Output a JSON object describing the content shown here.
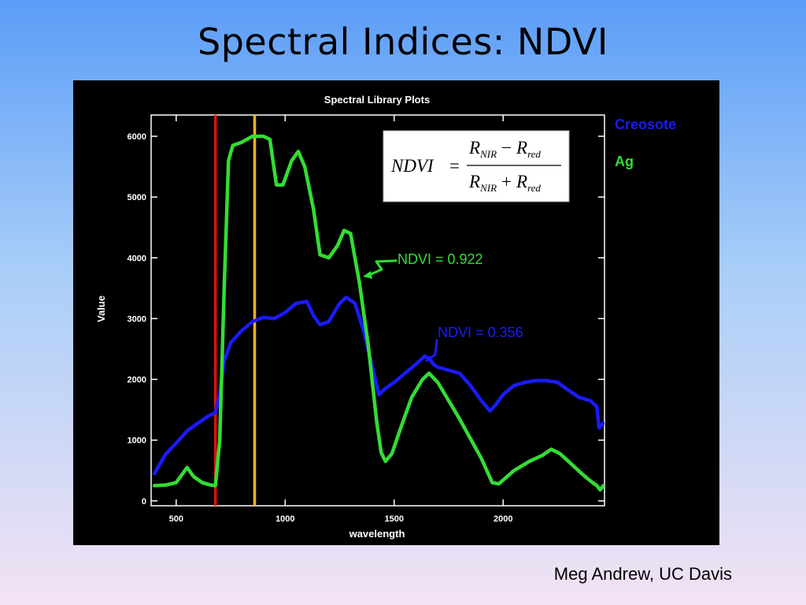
{
  "slide": {
    "title": "Spectral Indices:  NDVI",
    "credit": "Meg Andrew, UC Davis"
  },
  "colors": {
    "creosote": "#1a1aff",
    "ag": "#33dd33",
    "red_band_line": "#dd1111",
    "nir_band_line": "#ffb020"
  },
  "formula": {
    "lhs": "NDVI",
    "equals": "=",
    "numerator": {
      "a": "R",
      "a_sub": "NIR",
      "op": "−",
      "b": "R",
      "b_sub": "red"
    },
    "denominator": {
      "a": "R",
      "a_sub": "NIR",
      "op": "+",
      "b": "R",
      "b_sub": "red"
    }
  },
  "annotations": {
    "ag_ndvi": "NDVI = 0.922",
    "creosote_ndvi": "NDVI = 0.356"
  },
  "chart_data": {
    "type": "line",
    "title": "Spectral Library Plots",
    "xlabel": "wavelength",
    "ylabel": "Value",
    "xlim": [
      385,
      2465
    ],
    "ylim": [
      -80,
      6350
    ],
    "x_ticks": [
      500,
      1000,
      1500,
      2000
    ],
    "y_ticks": [
      0,
      1000,
      2000,
      3000,
      4000,
      5000,
      6000
    ],
    "legend_position": "outside-top-right",
    "grid": false,
    "vertical_markers": [
      {
        "x": 680,
        "color": "#dd1111"
      },
      {
        "x": 860,
        "color": "#ffb020"
      }
    ],
    "series": [
      {
        "name": "Creosote",
        "color": "#1a1aff",
        "points": [
          [
            400,
            450
          ],
          [
            450,
            760
          ],
          [
            500,
            950
          ],
          [
            550,
            1150
          ],
          [
            600,
            1280
          ],
          [
            650,
            1400
          ],
          [
            680,
            1450
          ],
          [
            700,
            1750
          ],
          [
            720,
            2300
          ],
          [
            750,
            2600
          ],
          [
            800,
            2800
          ],
          [
            850,
            2950
          ],
          [
            900,
            3020
          ],
          [
            950,
            3000
          ],
          [
            1000,
            3100
          ],
          [
            1050,
            3250
          ],
          [
            1100,
            3280
          ],
          [
            1130,
            3050
          ],
          [
            1160,
            2900
          ],
          [
            1200,
            2950
          ],
          [
            1250,
            3250
          ],
          [
            1280,
            3350
          ],
          [
            1320,
            3250
          ],
          [
            1360,
            2800
          ],
          [
            1400,
            2200
          ],
          [
            1430,
            1750
          ],
          [
            1460,
            1850
          ],
          [
            1500,
            1950
          ],
          [
            1550,
            2100
          ],
          [
            1600,
            2250
          ],
          [
            1640,
            2380
          ],
          [
            1660,
            2350
          ],
          [
            1680,
            2250
          ],
          [
            1700,
            2200
          ],
          [
            1750,
            2150
          ],
          [
            1800,
            2100
          ],
          [
            1850,
            1900
          ],
          [
            1900,
            1650
          ],
          [
            1940,
            1480
          ],
          [
            1970,
            1600
          ],
          [
            2000,
            1750
          ],
          [
            2050,
            1900
          ],
          [
            2100,
            1950
          ],
          [
            2150,
            1980
          ],
          [
            2200,
            1980
          ],
          [
            2250,
            1950
          ],
          [
            2300,
            1820
          ],
          [
            2350,
            1700
          ],
          [
            2400,
            1650
          ],
          [
            2430,
            1550
          ],
          [
            2440,
            1200
          ],
          [
            2460,
            1280
          ]
        ]
      },
      {
        "name": "Ag",
        "color": "#33dd33",
        "points": [
          [
            400,
            250
          ],
          [
            450,
            260
          ],
          [
            500,
            300
          ],
          [
            530,
            450
          ],
          [
            550,
            550
          ],
          [
            580,
            400
          ],
          [
            620,
            300
          ],
          [
            660,
            260
          ],
          [
            680,
            250
          ],
          [
            700,
            1000
          ],
          [
            720,
            3500
          ],
          [
            740,
            5600
          ],
          [
            760,
            5850
          ],
          [
            800,
            5900
          ],
          [
            850,
            6000
          ],
          [
            900,
            6000
          ],
          [
            930,
            5950
          ],
          [
            960,
            5200
          ],
          [
            990,
            5200
          ],
          [
            1030,
            5600
          ],
          [
            1060,
            5750
          ],
          [
            1090,
            5500
          ],
          [
            1130,
            4800
          ],
          [
            1160,
            4050
          ],
          [
            1200,
            4000
          ],
          [
            1240,
            4200
          ],
          [
            1270,
            4450
          ],
          [
            1300,
            4400
          ],
          [
            1340,
            3600
          ],
          [
            1380,
            2600
          ],
          [
            1420,
            1300
          ],
          [
            1440,
            800
          ],
          [
            1460,
            650
          ],
          [
            1490,
            780
          ],
          [
            1530,
            1200
          ],
          [
            1580,
            1700
          ],
          [
            1630,
            2000
          ],
          [
            1660,
            2100
          ],
          [
            1700,
            1950
          ],
          [
            1800,
            1350
          ],
          [
            1900,
            700
          ],
          [
            1950,
            300
          ],
          [
            1980,
            280
          ],
          [
            2050,
            500
          ],
          [
            2120,
            650
          ],
          [
            2180,
            750
          ],
          [
            2220,
            850
          ],
          [
            2260,
            780
          ],
          [
            2300,
            650
          ],
          [
            2360,
            450
          ],
          [
            2400,
            330
          ],
          [
            2430,
            250
          ],
          [
            2445,
            180
          ],
          [
            2460,
            250
          ]
        ]
      }
    ]
  }
}
